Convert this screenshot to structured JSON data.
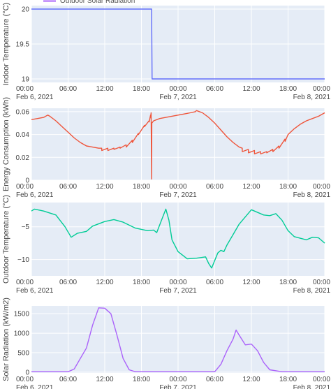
{
  "legend": {
    "visible_entry": "Outdoor Solar Radiation",
    "visible_entry_color": "#ab63fa",
    "placement": "top, partially cut off"
  },
  "colors": {
    "plot_background": "#e5ecf6",
    "grid": "#ffffff",
    "axis_text": "#444444"
  },
  "chart_data": [
    {
      "type": "line",
      "title": "",
      "xlabel": "",
      "ylabel": "Indoor Temperature (°C)",
      "x_ticks": [
        "00:00",
        "06:00",
        "12:00",
        "18:00",
        "00:00",
        "06:00",
        "12:00",
        "18:00",
        "00:00"
      ],
      "x_date_labels": [
        "Feb 6, 2021",
        "Feb 7, 2021",
        "Feb 8, 2021"
      ],
      "y_ticks": [
        "19",
        "19.5",
        "20"
      ],
      "ylim": [
        18.95,
        20.05
      ],
      "grid": true,
      "series": [
        {
          "color": "#636efa",
          "x": [
            "2021-02-06 00:00",
            "2021-02-06 19:40",
            "2021-02-06 19:45",
            "2021-02-08 00:00"
          ],
          "y": [
            20,
            20,
            19,
            19
          ]
        }
      ]
    },
    {
      "type": "line",
      "title": "",
      "xlabel": "",
      "ylabel": "Energy Consumption (kWh)",
      "x_ticks": [
        "00:00",
        "06:00",
        "12:00",
        "18:00",
        "00:00",
        "06:00",
        "12:00",
        "18:00",
        "00:00"
      ],
      "x_date_labels": [
        "Feb 6, 2021",
        "Feb 7, 2021",
        "Feb 8, 2021"
      ],
      "y_ticks": [
        "0",
        "0.02",
        "0.04",
        "0.06"
      ],
      "ylim": [
        0,
        0.063
      ],
      "grid": true,
      "series": [
        {
          "color": "#ef553b",
          "x": [
            "2021-02-06 00:00",
            "2021-02-06 01:00",
            "2021-02-06 02:00",
            "2021-02-06 02:40",
            "2021-02-06 03:00",
            "2021-02-06 04:00",
            "2021-02-06 05:00",
            "2021-02-06 06:00",
            "2021-02-06 07:00",
            "2021-02-06 08:00",
            "2021-02-06 09:00",
            "2021-02-06 10:00",
            "2021-02-06 11:00",
            "2021-02-06 11:30",
            "2021-02-06 11:31",
            "2021-02-06 12:30",
            "2021-02-06 12:31",
            "2021-02-06 13:30",
            "2021-02-06 13:31",
            "2021-02-06 14:30",
            "2021-02-06 14:31",
            "2021-02-06 15:30",
            "2021-02-06 15:31",
            "2021-02-06 16:30",
            "2021-02-06 16:31",
            "2021-02-06 17:30",
            "2021-02-06 17:31",
            "2021-02-06 18:30",
            "2021-02-06 18:31",
            "2021-02-06 19:15",
            "2021-02-06 19:16",
            "2021-02-06 19:30",
            "2021-02-06 19:31",
            "2021-02-06 19:35",
            "2021-02-06 19:40",
            "2021-02-06 19:42",
            "2021-02-06 20:00",
            "2021-02-06 21:00",
            "2021-02-06 22:00",
            "2021-02-06 23:00",
            "2021-02-07 00:00",
            "2021-02-07 01:00",
            "2021-02-07 02:00",
            "2021-02-07 02:50",
            "2021-02-07 03:00",
            "2021-02-07 04:00",
            "2021-02-07 05:00",
            "2021-02-07 06:00",
            "2021-02-07 07:00",
            "2021-02-07 08:00",
            "2021-02-07 09:00",
            "2021-02-07 10:00",
            "2021-02-07 10:30",
            "2021-02-07 10:31",
            "2021-02-07 11:30",
            "2021-02-07 11:31",
            "2021-02-07 12:30",
            "2021-02-07 12:31",
            "2021-02-07 13:30",
            "2021-02-07 13:31",
            "2021-02-07 14:30",
            "2021-02-07 14:31",
            "2021-02-07 15:30",
            "2021-02-07 15:31",
            "2021-02-07 16:30",
            "2021-02-07 16:31",
            "2021-02-07 17:30",
            "2021-02-07 17:31",
            "2021-02-07 18:00",
            "2021-02-07 19:00",
            "2021-02-07 20:00",
            "2021-02-07 21:00",
            "2021-02-07 22:00",
            "2021-02-07 23:00",
            "2021-02-08 00:00"
          ],
          "y": [
            0.053,
            0.054,
            0.055,
            0.057,
            0.056,
            0.052,
            0.047,
            0.042,
            0.037,
            0.033,
            0.03,
            0.029,
            0.028,
            0.028,
            0.026,
            0.028,
            0.026,
            0.028,
            0.027,
            0.029,
            0.028,
            0.031,
            0.029,
            0.035,
            0.033,
            0.041,
            0.04,
            0.048,
            0.047,
            0.052,
            0.051,
            0.057,
            0.055,
            0.059,
            0.001,
            0.05,
            0.052,
            0.054,
            0.055,
            0.056,
            0.057,
            0.058,
            0.059,
            0.06,
            0.061,
            0.059,
            0.055,
            0.05,
            0.044,
            0.038,
            0.033,
            0.029,
            0.028,
            0.025,
            0.027,
            0.024,
            0.026,
            0.023,
            0.025,
            0.023,
            0.025,
            0.024,
            0.027,
            0.025,
            0.03,
            0.028,
            0.036,
            0.034,
            0.04,
            0.045,
            0.049,
            0.052,
            0.054,
            0.056,
            0.059
          ]
        }
      ]
    },
    {
      "type": "line",
      "title": "",
      "xlabel": "",
      "ylabel": "Outdoor Temperature (°C)",
      "x_ticks": [
        "00:00",
        "06:00",
        "12:00",
        "18:00",
        "00:00",
        "06:00",
        "12:00",
        "18:00",
        "00:00"
      ],
      "x_date_labels": [
        "Feb 6, 2021",
        "Feb 7, 2021",
        "Feb 8, 2021"
      ],
      "y_ticks": [
        "−10",
        "−5"
      ],
      "ylim": [
        -12.5,
        -1.3
      ],
      "grid": true,
      "series": [
        {
          "color": "#00cc96",
          "x": [
            "2021-02-06 00:00",
            "2021-02-06 00:30",
            "2021-02-06 02:00",
            "2021-02-06 04:00",
            "2021-02-06 05:30",
            "2021-02-06 06:30",
            "2021-02-06 07:30",
            "2021-02-06 09:00",
            "2021-02-06 10:00",
            "2021-02-06 12:00",
            "2021-02-06 13:30",
            "2021-02-06 15:00",
            "2021-02-06 17:00",
            "2021-02-06 19:00",
            "2021-02-06 20:00",
            "2021-02-06 20:30",
            "2021-02-06 21:30",
            "2021-02-06 22:00",
            "2021-02-06 22:30",
            "2021-02-06 23:00",
            "2021-02-07 00:00",
            "2021-02-07 01:30",
            "2021-02-07 03:00",
            "2021-02-07 04:30",
            "2021-02-07 05:00",
            "2021-02-07 05:30",
            "2021-02-07 06:30",
            "2021-02-07 07:00",
            "2021-02-07 07:30",
            "2021-02-07 08:00",
            "2021-02-07 09:00",
            "2021-02-07 10:00",
            "2021-02-07 12:00",
            "2021-02-07 14:00",
            "2021-02-07 15:00",
            "2021-02-07 16:00",
            "2021-02-07 17:00",
            "2021-02-07 18:00",
            "2021-02-07 19:00",
            "2021-02-07 21:00",
            "2021-02-07 22:00",
            "2021-02-07 23:00",
            "2021-02-08 00:00"
          ],
          "y": [
            -2.6,
            -2.3,
            -2.6,
            -3.2,
            -5.0,
            -6.6,
            -6.0,
            -5.7,
            -4.9,
            -4.2,
            -3.9,
            -4.3,
            -5.2,
            -5.6,
            -5.5,
            -5.9,
            -3.5,
            -2.3,
            -4.0,
            -7.0,
            -8.8,
            -9.9,
            -9.8,
            -9.6,
            -10.6,
            -11.3,
            -9.0,
            -8.6,
            -8.8,
            -7.8,
            -6.2,
            -4.6,
            -2.4,
            -3.2,
            -3.3,
            -3.0,
            -4.0,
            -5.6,
            -6.5,
            -7.0,
            -6.6,
            -6.7,
            -7.5
          ]
        }
      ]
    },
    {
      "type": "line",
      "title": "",
      "xlabel": "",
      "ylabel": "Solar Radiation (kW/m2)",
      "x_ticks": [
        "00:00",
        "06:00",
        "12:00",
        "18:00",
        "00:00",
        "06:00",
        "12:00",
        "18:00",
        "00:00"
      ],
      "x_date_labels": [
        "Feb 6, 2021",
        "Feb 7, 2021",
        "Feb 8, 2021"
      ],
      "y_ticks": [
        "0",
        "500",
        "1000",
        "1500"
      ],
      "ylim": [
        -20,
        1700
      ],
      "grid": true,
      "series": [
        {
          "name": "Outdoor Solar Radiation",
          "color": "#ab63fa",
          "x": [
            "2021-02-06 00:00",
            "2021-02-06 06:00",
            "2021-02-06 07:00",
            "2021-02-06 08:00",
            "2021-02-06 09:00",
            "2021-02-06 10:00",
            "2021-02-06 11:00",
            "2021-02-06 12:00",
            "2021-02-06 13:00",
            "2021-02-06 14:00",
            "2021-02-06 15:00",
            "2021-02-06 16:00",
            "2021-02-06 17:00",
            "2021-02-06 18:00",
            "2021-02-07 06:00",
            "2021-02-07 07:00",
            "2021-02-07 08:00",
            "2021-02-07 09:00",
            "2021-02-07 09:30",
            "2021-02-07 10:00",
            "2021-02-07 11:00",
            "2021-02-07 12:00",
            "2021-02-07 13:00",
            "2021-02-07 14:00",
            "2021-02-07 15:00",
            "2021-02-07 17:00",
            "2021-02-08 00:00"
          ],
          "y": [
            10,
            10,
            80,
            350,
            620,
            1200,
            1650,
            1640,
            1500,
            950,
            350,
            60,
            10,
            10,
            10,
            200,
            550,
            850,
            1080,
            950,
            700,
            720,
            550,
            250,
            60,
            10,
            10
          ]
        }
      ]
    }
  ]
}
